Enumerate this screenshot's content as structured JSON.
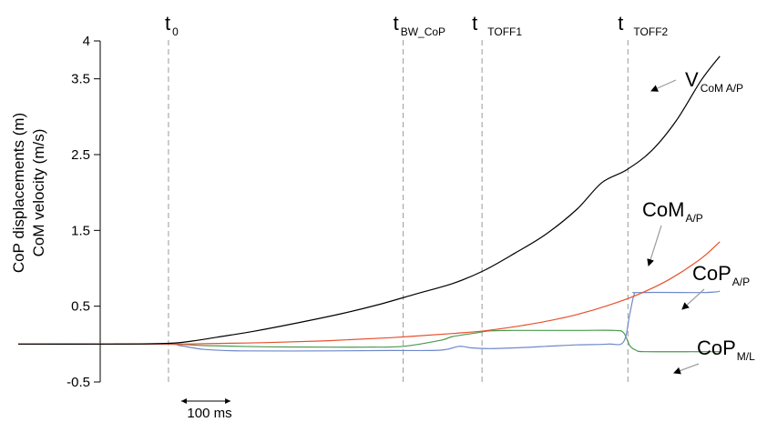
{
  "chart_data": {
    "type": "line",
    "title": "",
    "ylabel_lines": [
      "CoP displacements (m)",
      "CoM velocity (m/s)"
    ],
    "xlabel": "",
    "ylim": [
      -0.5,
      4
    ],
    "yticks": [
      {
        "value": 4,
        "label": "4"
      },
      {
        "value": 3.5,
        "label": "3.5"
      },
      {
        "value": 2.5,
        "label": "2.5"
      },
      {
        "value": 1.5,
        "label": "1.5"
      },
      {
        "value": 0.5,
        "label": "0.5"
      },
      {
        "value": -0.5,
        "label": "-0.5"
      }
    ],
    "time_unit": "ms",
    "xlim": [
      0,
      1140
    ],
    "scale_bar": {
      "from": 242,
      "to": 342,
      "label": "100 ms"
    },
    "events": [
      {
        "main": "t",
        "sub": "0",
        "t": 242
      },
      {
        "main": "t",
        "sub": "BW_CoP",
        "t": 620
      },
      {
        "main": "t",
        "sub": "TOFF1",
        "t": 747
      },
      {
        "main": "t",
        "sub": "TOFF2",
        "t": 982
      }
    ],
    "series": [
      {
        "main": "V",
        "sub": "CoM A/P",
        "color": "#000000",
        "t": [
          0,
          150,
          242,
          280,
          320,
          380,
          450,
          520,
          580,
          640,
          700,
          750,
          800,
          850,
          900,
          940,
          980,
          1020,
          1060,
          1100,
          1130
        ],
        "values": [
          0,
          0,
          0.01,
          0.04,
          0.09,
          0.17,
          0.28,
          0.4,
          0.52,
          0.66,
          0.8,
          0.97,
          1.2,
          1.45,
          1.78,
          2.13,
          2.3,
          2.55,
          2.95,
          3.48,
          3.8
        ]
      },
      {
        "main": "CoM",
        "sub": "A/P",
        "color": "#e8502d",
        "t": [
          0,
          242,
          300,
          400,
          500,
          600,
          700,
          750,
          800,
          850,
          900,
          950,
          1000,
          1050,
          1100,
          1130
        ],
        "values": [
          0,
          0,
          0.005,
          0.02,
          0.045,
          0.085,
          0.14,
          0.175,
          0.23,
          0.3,
          0.39,
          0.51,
          0.66,
          0.86,
          1.13,
          1.35
        ]
      },
      {
        "main": "CoP",
        "sub": "A/P",
        "color": "#6f88cc",
        "t": [
          0,
          230,
          260,
          300,
          360,
          500,
          600,
          680,
          710,
          730,
          760,
          800,
          850,
          900,
          950,
          975,
          985,
          992,
          1000,
          1100,
          1125,
          1130
        ],
        "values": [
          0,
          0,
          -0.02,
          -0.07,
          -0.09,
          -0.09,
          -0.085,
          -0.08,
          -0.03,
          -0.05,
          -0.06,
          -0.05,
          -0.03,
          -0.01,
          0,
          0.03,
          0.4,
          0.65,
          0.68,
          0.68,
          0.69,
          0.7
        ]
      },
      {
        "main": "CoP",
        "sub": "M/L",
        "color": "#4a9a4e",
        "t": [
          0,
          230,
          300,
          400,
          500,
          560,
          620,
          680,
          700,
          740,
          760,
          800,
          900,
          960,
          975,
          985,
          995,
          1010,
          1100,
          1130
        ],
        "values": [
          0,
          0,
          -0.02,
          -0.035,
          -0.04,
          -0.04,
          -0.03,
          0.05,
          0.1,
          0.15,
          0.175,
          0.18,
          0.18,
          0.18,
          0.15,
          -0.02,
          -0.08,
          -0.1,
          -0.1,
          -0.1
        ]
      }
    ]
  }
}
